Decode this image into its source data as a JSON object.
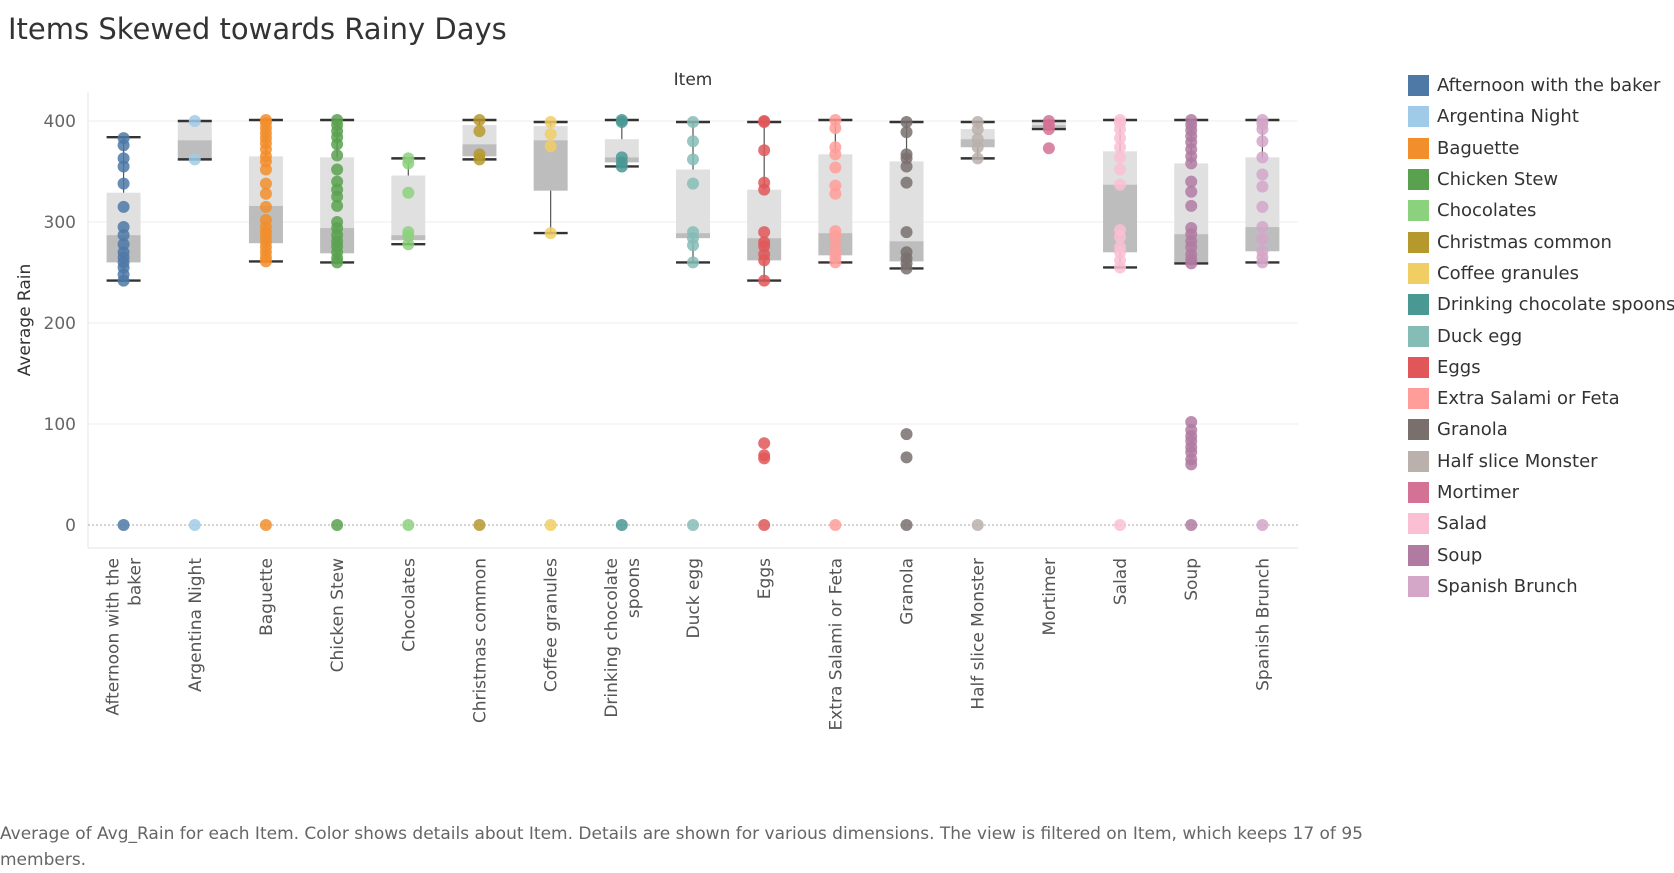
{
  "title": "Items Skewed towards Rainy Days",
  "caption": "Average of Avg_Rain for each Item.  Color shows details about Item.  Details are shown for various dimensions. The view is filtered on Item, which keeps 17 of 95 members.",
  "chart_data": {
    "type": "box-and-whisker",
    "title": "Items Skewed towards Rainy Days",
    "xlabel": "Item",
    "ylabel": "Average Rain",
    "ylim": [
      -20,
      420
    ],
    "yticks": [
      0,
      100,
      200,
      300,
      400
    ],
    "grid": true,
    "legend_position": "right",
    "categories": [
      {
        "name": "Afternoon with the baker",
        "label_lines": [
          "Afternoon with the",
          "baker"
        ],
        "color": "#4e79a7",
        "box": {
          "min": 242,
          "q1": 260,
          "median": 287,
          "q3": 329,
          "max": 384
        },
        "points": [
          0,
          242,
          248,
          255,
          260,
          265,
          270,
          278,
          287,
          295,
          315,
          338,
          355,
          363,
          376,
          383
        ]
      },
      {
        "name": "Argentina Night",
        "label_lines": [
          "Argentina Night"
        ],
        "color": "#a0cbe8",
        "box": {
          "min": 362,
          "q1": 362,
          "median": 381,
          "q3": 400,
          "max": 400
        },
        "points": [
          0,
          362,
          400
        ]
      },
      {
        "name": "Baguette",
        "label_lines": [
          "Baguette"
        ],
        "color": "#f28e2b",
        "box": {
          "min": 261,
          "q1": 279,
          "median": 316,
          "q3": 365,
          "max": 401
        },
        "points": [
          0,
          261,
          265,
          270,
          275,
          280,
          285,
          290,
          295,
          302,
          315,
          328,
          338,
          352,
          360,
          365,
          372,
          378,
          383,
          388,
          393,
          398,
          401
        ]
      },
      {
        "name": "Chicken Stew",
        "label_lines": [
          "Chicken Stew"
        ],
        "color": "#59a14f",
        "box": {
          "min": 260,
          "q1": 269,
          "median": 294,
          "q3": 364,
          "max": 401
        },
        "points": [
          0,
          260,
          264,
          270,
          276,
          281,
          287,
          294,
          300,
          316,
          325,
          332,
          340,
          352,
          366,
          377,
          384,
          390,
          396,
          401
        ]
      },
      {
        "name": "Chocolates",
        "label_lines": [
          "Chocolates"
        ],
        "color": "#8cd17d",
        "box": {
          "min": 278,
          "q1": 282,
          "median": 287,
          "q3": 346,
          "max": 363
        },
        "points": [
          0,
          278,
          286,
          290,
          329,
          358,
          363
        ]
      },
      {
        "name": "Christmas common",
        "label_lines": [
          "Christmas common"
        ],
        "color": "#b6992d",
        "box": {
          "min": 362,
          "q1": 365,
          "median": 377,
          "q3": 396,
          "max": 401
        },
        "points": [
          0,
          362,
          367,
          390,
          401
        ]
      },
      {
        "name": "Coffee granules",
        "label_lines": [
          "Coffee granules"
        ],
        "color": "#f1ce63",
        "box": {
          "min": 289,
          "q1": 331,
          "median": 381,
          "q3": 395,
          "max": 399
        },
        "points": [
          0,
          289,
          375,
          387,
          399
        ]
      },
      {
        "name": "Drinking chocolate spoons",
        "label_lines": [
          "Drinking chocolate",
          "spoons"
        ],
        "color": "#499894",
        "box": {
          "min": 355,
          "q1": 359,
          "median": 364,
          "q3": 382,
          "max": 401
        },
        "points": [
          0,
          355,
          359,
          364,
          399,
          401
        ]
      },
      {
        "name": "Duck egg",
        "label_lines": [
          "Duck egg"
        ],
        "color": "#86bcb6",
        "box": {
          "min": 260,
          "q1": 284,
          "median": 289,
          "q3": 352,
          "max": 399
        },
        "points": [
          0,
          260,
          277,
          284,
          290,
          338,
          362,
          380,
          399
        ]
      },
      {
        "name": "Eggs",
        "label_lines": [
          "Eggs"
        ],
        "color": "#e15759",
        "box": {
          "min": 242,
          "q1": 262,
          "median": 284,
          "q3": 332,
          "max": 399
        },
        "points": [
          0,
          66,
          69,
          81,
          242,
          262,
          268,
          276,
          280,
          290,
          332,
          339,
          371,
          399,
          400
        ]
      },
      {
        "name": "Extra Salami or Feta",
        "label_lines": [
          "Extra Salami or Feta"
        ],
        "color": "#ff9d9a",
        "box": {
          "min": 260,
          "q1": 267,
          "median": 289,
          "q3": 367,
          "max": 401
        },
        "points": [
          0,
          260,
          265,
          270,
          278,
          286,
          291,
          328,
          336,
          354,
          367,
          374,
          393,
          401
        ]
      },
      {
        "name": "Granola",
        "label_lines": [
          "Granola"
        ],
        "color": "#79706e",
        "box": {
          "min": 254,
          "q1": 261,
          "median": 281,
          "q3": 360,
          "max": 399
        },
        "points": [
          0,
          67,
          90,
          254,
          259,
          264,
          270,
          290,
          339,
          355,
          363,
          367,
          389,
          399
        ]
      },
      {
        "name": "Half slice Monster",
        "label_lines": [
          "Half slice Monster"
        ],
        "color": "#bab0ac",
        "box": {
          "min": 363,
          "q1": 374,
          "median": 382,
          "q3": 392,
          "max": 399
        },
        "points": [
          0,
          363,
          374,
          382,
          392,
          399
        ]
      },
      {
        "name": "Mortimer",
        "label_lines": [
          "Mortimer"
        ],
        "color": "#d37295",
        "box": {
          "min": 392,
          "q1": 392,
          "median": 396,
          "q3": 400,
          "max": 400
        },
        "points": [
          373,
          392,
          396,
          400
        ]
      },
      {
        "name": "Salad",
        "label_lines": [
          "Salad"
        ],
        "color": "#fabfd2",
        "box": {
          "min": 255,
          "q1": 270,
          "median": 337,
          "q3": 370,
          "max": 401
        },
        "points": [
          0,
          255,
          262,
          270,
          275,
          285,
          292,
          337,
          352,
          364,
          374,
          383,
          392,
          398,
          401
        ]
      },
      {
        "name": "Soup",
        "label_lines": [
          "Soup"
        ],
        "color": "#b07aa1",
        "box": {
          "min": 259,
          "q1": 260,
          "median": 288,
          "q3": 358,
          "max": 401
        },
        "points": [
          0,
          60,
          65,
          72,
          77,
          83,
          88,
          94,
          102,
          259,
          263,
          268,
          275,
          281,
          288,
          294,
          316,
          330,
          340,
          358,
          365,
          372,
          379,
          385,
          391,
          396,
          401
        ]
      },
      {
        "name": "Spanish Brunch",
        "label_lines": [
          "Spanish Brunch"
        ],
        "color": "#d4a6c8",
        "box": {
          "min": 260,
          "q1": 271,
          "median": 295,
          "q3": 364,
          "max": 401
        },
        "points": [
          0,
          260,
          265,
          271,
          283,
          295,
          315,
          335,
          347,
          364,
          380,
          392,
          397,
          401
        ]
      }
    ]
  }
}
